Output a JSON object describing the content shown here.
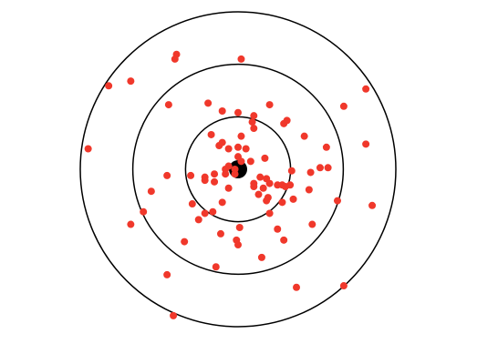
{
  "chart_data": {
    "type": "scatter",
    "title": "",
    "xlabel": "",
    "ylabel": "",
    "xlim": [
      -1.0,
      1.0
    ],
    "ylim": [
      -1.0,
      1.0
    ],
    "grid": false,
    "axes_visible": false,
    "rings": [
      {
        "radius": 0.333
      },
      {
        "radius": 0.667
      },
      {
        "radius": 1.0
      }
    ],
    "bullseye": {
      "x": 0.0,
      "y": 0.0
    },
    "series": [
      {
        "values_xy": [
          [
            -0.39,
            0.73
          ],
          [
            -0.4,
            0.7
          ],
          [
            0.02,
            0.7
          ],
          [
            -0.82,
            0.53
          ],
          [
            -0.68,
            0.56
          ],
          [
            0.81,
            0.51
          ],
          [
            -0.44,
            0.41
          ],
          [
            -0.19,
            0.42
          ],
          [
            0.2,
            0.41
          ],
          [
            0.67,
            0.4
          ],
          [
            -0.1,
            0.37
          ],
          [
            0.0,
            0.36
          ],
          [
            0.1,
            0.34
          ],
          [
            0.31,
            0.31
          ],
          [
            0.29,
            0.29
          ],
          [
            0.09,
            0.3
          ],
          [
            0.1,
            0.26
          ],
          [
            -0.17,
            0.22
          ],
          [
            0.42,
            0.21
          ],
          [
            -0.1,
            0.17
          ],
          [
            0.02,
            0.21
          ],
          [
            -0.12,
            0.15
          ],
          [
            0.56,
            0.14
          ],
          [
            0.81,
            0.16
          ],
          [
            -0.95,
            0.13
          ],
          [
            0.0,
            0.14
          ],
          [
            0.05,
            0.13
          ],
          [
            -0.06,
            0.13
          ],
          [
            0.17,
            0.07
          ],
          [
            0.0,
            0.08
          ],
          [
            0.02,
            0.05
          ],
          [
            0.08,
            0.05
          ],
          [
            -0.06,
            0.02
          ],
          [
            0.52,
            0.01
          ],
          [
            0.57,
            0.01
          ],
          [
            -0.08,
            0.0
          ],
          [
            -0.02,
            0.0
          ],
          [
            0.34,
            -0.01
          ],
          [
            0.46,
            -0.02
          ],
          [
            -0.45,
            -0.04
          ],
          [
            -0.3,
            -0.04
          ],
          [
            -0.21,
            -0.05
          ],
          [
            -0.15,
            -0.03
          ],
          [
            -0.08,
            -0.03
          ],
          [
            -0.02,
            -0.03
          ],
          [
            0.14,
            -0.05
          ],
          [
            0.18,
            -0.06
          ],
          [
            -0.21,
            -0.07
          ],
          [
            -0.15,
            -0.08
          ],
          [
            0.1,
            -0.09
          ],
          [
            0.2,
            -0.09
          ],
          [
            0.25,
            -0.1
          ],
          [
            -0.06,
            -0.12
          ],
          [
            0.28,
            -0.1
          ],
          [
            0.3,
            -0.11
          ],
          [
            0.33,
            -0.1
          ],
          [
            0.1,
            -0.11
          ],
          [
            0.16,
            -0.12
          ],
          [
            -0.55,
            -0.14
          ],
          [
            0.45,
            -0.13
          ],
          [
            0.13,
            -0.16
          ],
          [
            0.19,
            -0.18
          ],
          [
            0.35,
            -0.19
          ],
          [
            0.63,
            -0.2
          ],
          [
            0.28,
            -0.21
          ],
          [
            -0.29,
            -0.22
          ],
          [
            -0.1,
            -0.21
          ],
          [
            0.18,
            -0.2
          ],
          [
            -0.16,
            -0.27
          ],
          [
            -0.21,
            -0.28
          ],
          [
            -0.6,
            -0.27
          ],
          [
            0.2,
            -0.28
          ],
          [
            -0.25,
            -0.32
          ],
          [
            0.47,
            -0.35
          ],
          [
            -0.68,
            -0.35
          ],
          [
            0.01,
            -0.37
          ],
          [
            0.25,
            -0.38
          ],
          [
            -0.11,
            -0.41
          ],
          [
            -0.34,
            -0.46
          ],
          [
            -0.01,
            -0.45
          ],
          [
            0.29,
            -0.45
          ],
          [
            0.0,
            -0.48
          ],
          [
            0.15,
            -0.56
          ],
          [
            0.85,
            -0.23
          ],
          [
            -0.14,
            -0.62
          ],
          [
            -0.45,
            -0.67
          ],
          [
            0.37,
            -0.75
          ],
          [
            0.67,
            -0.74
          ],
          [
            -0.41,
            -0.93
          ]
        ],
        "color": "#f0382b"
      }
    ],
    "ring_color": "#000000",
    "bullseye_color": "#000000"
  }
}
